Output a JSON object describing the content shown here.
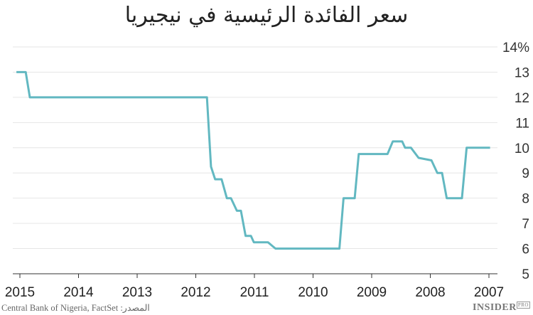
{
  "chart_data": {
    "type": "line",
    "title": "سعر الفائدة الرئيسية في نيجيريا",
    "xlabel": "",
    "ylabel": "",
    "x_reversed": true,
    "xlim": [
      2015,
      2007
    ],
    "ylim": [
      5,
      14
    ],
    "y_ticks": [
      "5",
      "6",
      "7",
      "8",
      "9",
      "10",
      "11",
      "12",
      "13",
      "14%"
    ],
    "x_ticks": [
      "2015",
      "2014",
      "2013",
      "2012",
      "2011",
      "2010",
      "2009",
      "2008",
      "2007"
    ],
    "grid": "horizontal",
    "line_color": "#62b8c1",
    "series": [
      {
        "x": [
          2015.06,
          2014.9,
          2014.83,
          2011.81,
          2011.74,
          2011.67,
          2011.56,
          2011.47,
          2011.4,
          2011.3,
          2011.23,
          2011.15,
          2011.06,
          2011.01,
          2010.77,
          2010.64,
          2009.55,
          2009.48,
          2009.29,
          2009.22,
          2008.73,
          2008.64,
          2008.48,
          2008.43,
          2008.33,
          2008.2,
          2007.98,
          2007.88,
          2007.8,
          2007.72,
          2007.46,
          2007.38,
          2006.98
        ],
        "values": [
          13,
          13,
          12,
          12,
          9.25,
          8.75,
          8.75,
          8,
          8,
          7.5,
          7.5,
          6.5,
          6.5,
          6.25,
          6.25,
          6,
          6,
          8,
          8,
          9.75,
          9.75,
          10.25,
          10.25,
          10,
          10,
          9.6,
          9.5,
          9,
          9,
          8,
          8,
          10,
          10
        ]
      }
    ]
  },
  "source": "Central Bank of Nigeria, FactSet :المصدر",
  "logo": {
    "main": "INSIDER",
    "sub": "PRO"
  }
}
